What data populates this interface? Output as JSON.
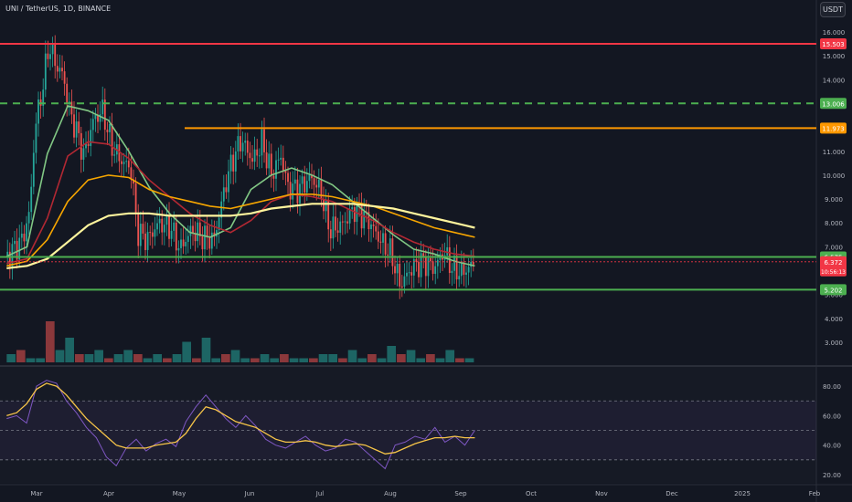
{
  "header": {
    "symbol_text": "UNI / TetherUS, 1D, BINANCE",
    "currency_button": "USDT"
  },
  "chart_data": [
    {
      "type": "candlestick",
      "title": "UNI / TetherUS, 1D, BINANCE",
      "price_axis_ticks": [
        "16.000",
        "15.000",
        "14.000",
        "13.000",
        "12.000",
        "11.000",
        "10.000",
        "9.000",
        "8.000",
        "7.000",
        "6.000",
        "5.000",
        "4.000",
        "3.000"
      ],
      "x_ticks": [
        "Mar",
        "Apr",
        "May",
        "Jun",
        "Jul",
        "Aug",
        "Sep",
        "Oct",
        "Nov",
        "Dec",
        "2025",
        "Feb"
      ],
      "horizontal_levels": [
        {
          "value": 15.503,
          "label": "15.503",
          "color": "#f23645",
          "style": "solid"
        },
        {
          "value": 13.006,
          "label": "13.006",
          "color": "#4caf50",
          "style": "dashed"
        },
        {
          "value": 11.973,
          "label": "11.973",
          "color": "#ff9800",
          "style": "solid"
        },
        {
          "value": 6.575,
          "label": "6.575",
          "color": "#4caf50",
          "style": "solid"
        },
        {
          "value": 5.202,
          "label": "5.202",
          "color": "#4caf50",
          "style": "solid"
        }
      ],
      "last_price": {
        "value": 6.372,
        "label": "6.372",
        "countdown": "10:56:13",
        "color": "#f23645"
      },
      "close_path": [
        [
          "2024-02-18",
          6.6
        ],
        [
          "2024-02-24",
          7.3
        ],
        [
          "2024-02-27",
          8.5
        ],
        [
          "2024-02-29",
          12.0
        ],
        [
          "2024-03-03",
          13.5
        ],
        [
          "2024-03-06",
          15.5
        ],
        [
          "2024-03-09",
          14.6
        ],
        [
          "2024-03-12",
          14.2
        ],
        [
          "2024-03-15",
          12.6
        ],
        [
          "2024-03-18",
          11.8
        ],
        [
          "2024-03-21",
          10.8
        ],
        [
          "2024-03-25",
          12.3
        ],
        [
          "2024-03-29",
          12.7
        ],
        [
          "2024-04-02",
          11.2
        ],
        [
          "2024-04-06",
          10.6
        ],
        [
          "2024-04-10",
          10.3
        ],
        [
          "2024-04-13",
          7.6
        ],
        [
          "2024-04-17",
          7.3
        ],
        [
          "2024-04-22",
          8.0
        ],
        [
          "2024-04-27",
          7.8
        ],
        [
          "2024-05-01",
          6.9
        ],
        [
          "2024-05-06",
          7.7
        ],
        [
          "2024-05-11",
          7.4
        ],
        [
          "2024-05-16",
          7.3
        ],
        [
          "2024-05-21",
          9.6
        ],
        [
          "2024-05-24",
          10.6
        ],
        [
          "2024-05-28",
          11.5
        ],
        [
          "2024-06-02",
          10.6
        ],
        [
          "2024-06-06",
          11.4
        ],
        [
          "2024-06-10",
          10.0
        ],
        [
          "2024-06-14",
          10.8
        ],
        [
          "2024-06-17",
          9.5
        ],
        [
          "2024-06-21",
          9.4
        ],
        [
          "2024-06-27",
          9.9
        ],
        [
          "2024-07-01",
          9.3
        ],
        [
          "2024-07-05",
          7.7
        ],
        [
          "2024-07-10",
          7.9
        ],
        [
          "2024-07-16",
          8.6
        ],
        [
          "2024-07-22",
          8.1
        ],
        [
          "2024-07-27",
          7.3
        ],
        [
          "2024-08-01",
          6.7
        ],
        [
          "2024-08-05",
          5.4
        ],
        [
          "2024-08-10",
          6.1
        ],
        [
          "2024-08-15",
          6.4
        ],
        [
          "2024-08-20",
          6.1
        ],
        [
          "2024-08-24",
          6.8
        ],
        [
          "2024-08-28",
          6.1
        ],
        [
          "2024-09-01",
          5.9
        ],
        [
          "2024-09-05",
          6.2
        ],
        [
          "2024-09-07",
          6.37
        ]
      ],
      "moving_averages": [
        {
          "color": "#81c784",
          "values": [
            6.6,
            7.0,
            10.9,
            12.9,
            12.7,
            12.3,
            11.0,
            9.5,
            8.4,
            7.6,
            7.4,
            7.8,
            9.4,
            10.0,
            10.3,
            10.0,
            9.6,
            8.9,
            8.2,
            7.5,
            6.9,
            6.7,
            6.4,
            6.2
          ]
        },
        {
          "color": "#b22833",
          "values": [
            6.3,
            6.5,
            8.2,
            10.8,
            11.4,
            11.3,
            10.7,
            9.8,
            9.1,
            8.4,
            7.9,
            7.6,
            8.1,
            8.9,
            9.2,
            9.1,
            8.9,
            8.5,
            8.1,
            7.6,
            7.2,
            6.9,
            6.7,
            6.6
          ]
        },
        {
          "color": "#f7a600",
          "values": [
            6.2,
            6.4,
            7.3,
            8.9,
            9.8,
            10.0,
            9.9,
            9.4,
            9.1,
            8.9,
            8.7,
            8.6,
            8.8,
            9.0,
            9.2,
            9.2,
            9.1,
            8.9,
            8.7,
            8.4,
            8.1,
            7.8,
            7.6,
            7.4
          ]
        },
        {
          "color": "#fff59d",
          "values": [
            6.1,
            6.2,
            6.5,
            7.2,
            7.9,
            8.3,
            8.4,
            8.4,
            8.3,
            8.3,
            8.3,
            8.3,
            8.4,
            8.6,
            8.7,
            8.8,
            8.8,
            8.8,
            8.7,
            8.6,
            8.4,
            8.2,
            8.0,
            7.8
          ]
        }
      ],
      "volume": {
        "values": [
          2,
          3,
          1,
          1,
          10,
          3,
          6,
          2,
          2,
          3,
          1,
          2,
          3,
          2,
          1,
          2,
          1,
          2,
          5,
          1,
          6,
          1,
          2,
          3,
          1,
          1,
          2,
          1,
          2,
          1,
          1,
          1,
          2,
          2,
          1,
          3,
          1,
          2,
          1,
          4,
          2,
          3,
          1,
          2,
          1,
          3,
          1,
          1
        ]
      }
    },
    {
      "type": "line",
      "title": "RSI",
      "y_ticks": [
        "80.00",
        "60.00",
        "40.00",
        "20.00"
      ],
      "ylim": [
        15,
        90
      ],
      "bands": [
        {
          "lower": 30,
          "upper": 70
        },
        {
          "middle": 50
        }
      ],
      "series": [
        {
          "color": "#7e57c2",
          "values": [
            58,
            60,
            55,
            80,
            84,
            82,
            70,
            62,
            52,
            45,
            32,
            26,
            38,
            44,
            36,
            41,
            44,
            39,
            56,
            66,
            74,
            66,
            58,
            52,
            60,
            53,
            44,
            40,
            38,
            42,
            46,
            40,
            36,
            38,
            44,
            42,
            36,
            30,
            24,
            40,
            42,
            46,
            44,
            52,
            42,
            46,
            40,
            50
          ]
        },
        {
          "color": "#f7c548",
          "values": [
            60,
            62,
            68,
            78,
            82,
            80,
            74,
            66,
            58,
            52,
            46,
            40,
            38,
            38,
            38,
            40,
            41,
            42,
            48,
            58,
            66,
            64,
            60,
            56,
            54,
            52,
            48,
            44,
            42,
            42,
            43,
            42,
            40,
            39,
            40,
            41,
            40,
            37,
            34,
            35,
            38,
            41,
            43,
            45,
            45,
            46,
            45,
            45
          ]
        }
      ]
    }
  ]
}
